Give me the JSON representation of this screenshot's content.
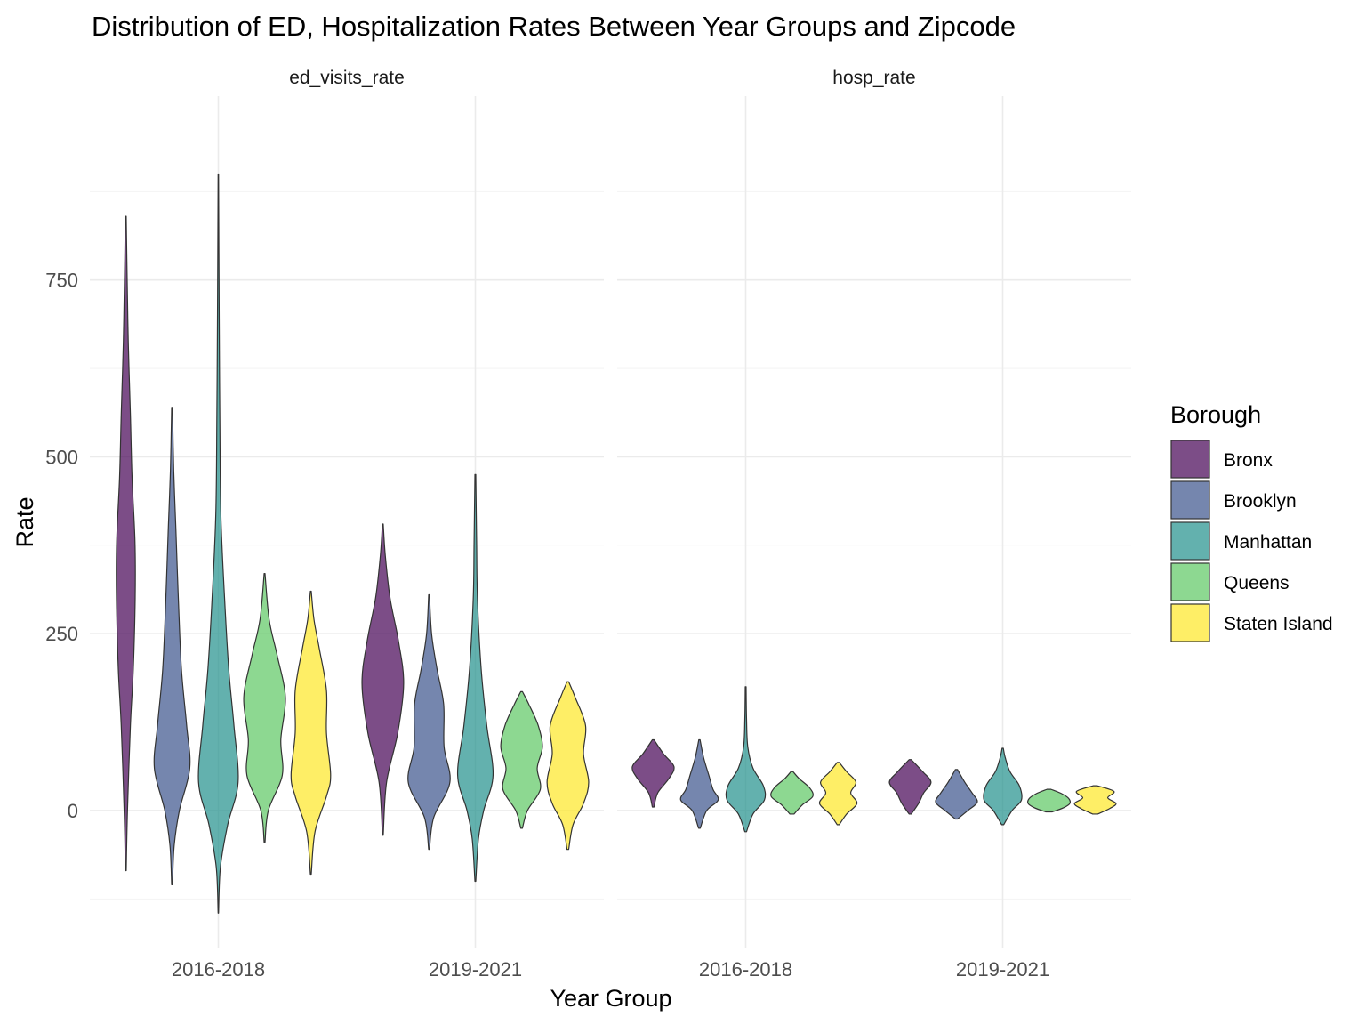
{
  "chart_data": {
    "type": "violin",
    "title": "Distribution of ED, Hospitalization Rates Between Year Groups and Zipcode",
    "xlabel": "Year Group",
    "ylabel": "Rate",
    "categories": [
      "2016-2018",
      "2019-2021"
    ],
    "ylim": [
      -195,
      1010
    ],
    "yticks": [
      0,
      250,
      500,
      750
    ],
    "grid": true,
    "legend": {
      "title": "Borough",
      "placement": "right",
      "items": [
        {
          "name": "Bronx",
          "color": "#440154"
        },
        {
          "name": "Brooklyn",
          "color": "#3B528B"
        },
        {
          "name": "Manhattan",
          "color": "#21908C"
        },
        {
          "name": "Queens",
          "color": "#5DC863"
        },
        {
          "name": "Staten Island",
          "color": "#FDE725"
        }
      ]
    },
    "fill_alpha": 0.7,
    "facets": [
      {
        "label": "ed_visits_rate",
        "groups": [
          {
            "year_group": "2016-2018",
            "borough": "Bronx",
            "min": -85,
            "max": 840,
            "profile": [
              [
                -85,
                0.02
              ],
              [
                0,
                0.08
              ],
              [
                120,
                0.22
              ],
              [
                200,
                0.36
              ],
              [
                300,
                0.45
              ],
              [
                380,
                0.44
              ],
              [
                470,
                0.3
              ],
              [
                560,
                0.22
              ],
              [
                660,
                0.12
              ],
              [
                760,
                0.06
              ],
              [
                840,
                0.02
              ]
            ]
          },
          {
            "year_group": "2016-2018",
            "borough": "Brooklyn",
            "min": -105,
            "max": 570,
            "profile": [
              [
                -105,
                0.02
              ],
              [
                -50,
                0.1
              ],
              [
                0,
                0.35
              ],
              [
                60,
                0.85
              ],
              [
                120,
                0.7
              ],
              [
                200,
                0.45
              ],
              [
                300,
                0.3
              ],
              [
                400,
                0.18
              ],
              [
                480,
                0.08
              ],
              [
                570,
                0.02
              ]
            ]
          },
          {
            "year_group": "2016-2018",
            "borough": "Manhattan",
            "min": -145,
            "max": 900,
            "profile": [
              [
                -145,
                0.01
              ],
              [
                -80,
                0.1
              ],
              [
                -20,
                0.45
              ],
              [
                40,
                0.95
              ],
              [
                120,
                0.75
              ],
              [
                200,
                0.5
              ],
              [
                300,
                0.3
              ],
              [
                420,
                0.12
              ],
              [
                560,
                0.07
              ],
              [
                700,
                0.04
              ],
              [
                900,
                0.01
              ]
            ]
          },
          {
            "year_group": "2016-2018",
            "borough": "Queens",
            "min": -45,
            "max": 335,
            "profile": [
              [
                -45,
                0.02
              ],
              [
                0,
                0.18
              ],
              [
                50,
                0.85
              ],
              [
                100,
                0.78
              ],
              [
                160,
                1.0
              ],
              [
                220,
                0.6
              ],
              [
                270,
                0.22
              ],
              [
                335,
                0.02
              ]
            ]
          },
          {
            "year_group": "2016-2018",
            "borough": "Staten Island",
            "min": -90,
            "max": 310,
            "profile": [
              [
                -90,
                0.02
              ],
              [
                -30,
                0.2
              ],
              [
                20,
                0.75
              ],
              [
                50,
                0.95
              ],
              [
                110,
                0.75
              ],
              [
                170,
                0.75
              ],
              [
                230,
                0.4
              ],
              [
                270,
                0.15
              ],
              [
                310,
                0.02
              ]
            ]
          },
          {
            "year_group": "2019-2021",
            "borough": "Bronx",
            "min": -35,
            "max": 405,
            "profile": [
              [
                -35,
                0.02
              ],
              [
                40,
                0.18
              ],
              [
                110,
                0.72
              ],
              [
                180,
                1.0
              ],
              [
                240,
                0.75
              ],
              [
                300,
                0.35
              ],
              [
                360,
                0.12
              ],
              [
                405,
                0.02
              ]
            ]
          },
          {
            "year_group": "2019-2021",
            "borough": "Brooklyn",
            "min": -55,
            "max": 305,
            "profile": [
              [
                -55,
                0.02
              ],
              [
                -10,
                0.22
              ],
              [
                40,
                1.0
              ],
              [
                90,
                0.72
              ],
              [
                150,
                0.7
              ],
              [
                200,
                0.38
              ],
              [
                250,
                0.12
              ],
              [
                305,
                0.02
              ]
            ]
          },
          {
            "year_group": "2019-2021",
            "borough": "Manhattan",
            "min": -100,
            "max": 475,
            "profile": [
              [
                -100,
                0.02
              ],
              [
                -40,
                0.15
              ],
              [
                0,
                0.4
              ],
              [
                50,
                0.85
              ],
              [
                120,
                0.55
              ],
              [
                200,
                0.28
              ],
              [
                300,
                0.1
              ],
              [
                380,
                0.06
              ],
              [
                475,
                0.02
              ]
            ]
          },
          {
            "year_group": "2019-2021",
            "borough": "Queens",
            "min": -25,
            "max": 168,
            "profile": [
              [
                -25,
                0.04
              ],
              [
                0,
                0.28
              ],
              [
                30,
                0.9
              ],
              [
                60,
                0.75
              ],
              [
                90,
                1.0
              ],
              [
                120,
                0.8
              ],
              [
                150,
                0.35
              ],
              [
                168,
                0.04
              ]
            ]
          },
          {
            "year_group": "2019-2021",
            "borough": "Staten Island",
            "min": -55,
            "max": 182,
            "profile": [
              [
                -55,
                0.04
              ],
              [
                -20,
                0.25
              ],
              [
                10,
                0.75
              ],
              [
                40,
                1.0
              ],
              [
                80,
                0.75
              ],
              [
                120,
                0.85
              ],
              [
                160,
                0.35
              ],
              [
                182,
                0.04
              ]
            ]
          }
        ]
      },
      {
        "label": "hosp_rate",
        "groups": [
          {
            "year_group": "2016-2018",
            "borough": "Bronx",
            "min": 5,
            "max": 100,
            "profile": [
              [
                5,
                0.04
              ],
              [
                25,
                0.22
              ],
              [
                45,
                0.75
              ],
              [
                62,
                1.0
              ],
              [
                80,
                0.5
              ],
              [
                100,
                0.04
              ]
            ]
          },
          {
            "year_group": "2016-2018",
            "borough": "Brooklyn",
            "min": -25,
            "max": 100,
            "profile": [
              [
                -25,
                0.04
              ],
              [
                0,
                0.35
              ],
              [
                15,
                0.9
              ],
              [
                30,
                0.65
              ],
              [
                50,
                0.45
              ],
              [
                75,
                0.2
              ],
              [
                100,
                0.03
              ]
            ]
          },
          {
            "year_group": "2016-2018",
            "borough": "Manhattan",
            "min": -30,
            "max": 175,
            "profile": [
              [
                -30,
                0.04
              ],
              [
                -5,
                0.35
              ],
              [
                15,
                0.9
              ],
              [
                35,
                0.85
              ],
              [
                60,
                0.35
              ],
              [
                90,
                0.1
              ],
              [
                130,
                0.04
              ],
              [
                175,
                0.02
              ]
            ]
          },
          {
            "year_group": "2016-2018",
            "borough": "Queens",
            "min": -5,
            "max": 55,
            "profile": [
              [
                -5,
                0.1
              ],
              [
                8,
                0.5
              ],
              [
                20,
                1.0
              ],
              [
                32,
                0.85
              ],
              [
                45,
                0.35
              ],
              [
                55,
                0.05
              ]
            ]
          },
          {
            "year_group": "2016-2018",
            "borough": "Staten Island",
            "min": -20,
            "max": 68,
            "profile": [
              [
                -20,
                0.05
              ],
              [
                -5,
                0.4
              ],
              [
                10,
                0.9
              ],
              [
                25,
                0.6
              ],
              [
                40,
                0.85
              ],
              [
                55,
                0.4
              ],
              [
                68,
                0.05
              ]
            ]
          },
          {
            "year_group": "2019-2021",
            "borough": "Bronx",
            "min": -5,
            "max": 72,
            "profile": [
              [
                -5,
                0.05
              ],
              [
                10,
                0.4
              ],
              [
                25,
                0.65
              ],
              [
                40,
                1.0
              ],
              [
                55,
                0.6
              ],
              [
                72,
                0.05
              ]
            ]
          },
          {
            "year_group": "2019-2021",
            "borough": "Brooklyn",
            "min": -12,
            "max": 58,
            "profile": [
              [
                -12,
                0.05
              ],
              [
                0,
                0.55
              ],
              [
                12,
                1.0
              ],
              [
                25,
                0.75
              ],
              [
                40,
                0.4
              ],
              [
                58,
                0.05
              ]
            ]
          },
          {
            "year_group": "2019-2021",
            "borough": "Manhattan",
            "min": -20,
            "max": 88,
            "profile": [
              [
                -20,
                0.05
              ],
              [
                0,
                0.45
              ],
              [
                15,
                0.9
              ],
              [
                35,
                0.8
              ],
              [
                55,
                0.35
              ],
              [
                75,
                0.12
              ],
              [
                88,
                0.03
              ]
            ]
          },
          {
            "year_group": "2019-2021",
            "borough": "Queens",
            "min": -2,
            "max": 30,
            "profile": [
              [
                -2,
                0.15
              ],
              [
                4,
                0.7
              ],
              [
                10,
                1.0
              ],
              [
                17,
                0.95
              ],
              [
                24,
                0.6
              ],
              [
                30,
                0.1
              ]
            ]
          },
          {
            "year_group": "2019-2021",
            "borough": "Staten Island",
            "min": -5,
            "max": 35,
            "profile": [
              [
                -5,
                0.12
              ],
              [
                3,
                0.7
              ],
              [
                10,
                1.0
              ],
              [
                18,
                0.6
              ],
              [
                27,
                0.9
              ],
              [
                35,
                0.1
              ]
            ]
          }
        ]
      }
    ]
  }
}
